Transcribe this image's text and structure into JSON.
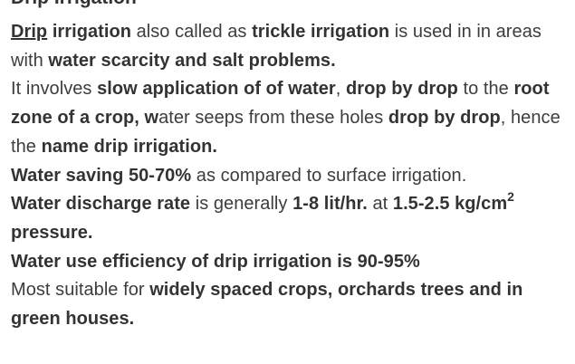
{
  "cutoff_heading": "Drip Irrigation",
  "p1": {
    "t1": "Drip",
    "t2": "irrigation",
    "t3": " also called as ",
    "t4": "trickle irrigation",
    "t5": " is used in in areas with ",
    "t6": "water scarcity and salt problems."
  },
  "p2": {
    "t1": "It involves ",
    "t2": "slow application of of water",
    "t3": ", ",
    "t4": "drop by drop",
    "t5": " to the ",
    "t6": "root zone of a crop, w",
    "t7": "ater seeps from these holes ",
    "t8": "drop by drop",
    "t9": ", hence the ",
    "t10": "name drip irrigation."
  },
  "p3": {
    "t1": "Water saving 50-70%",
    "t2": " as compared to surface irrigation."
  },
  "p4": {
    "t1": "Water discharge rate",
    "t2": " is generally ",
    "t3": "1-8 lit/hr.",
    "t4": " at ",
    "t5": "1.5-2.5 kg/cm",
    "t6": "2",
    "t7": " pressure."
  },
  "p5": {
    "t1": "Water use efficiency of drip irrigation is 90-95%"
  },
  "p6": {
    "t1": "Most suitable for ",
    "t2": "widely spaced crops, orchards trees and in green houses."
  }
}
